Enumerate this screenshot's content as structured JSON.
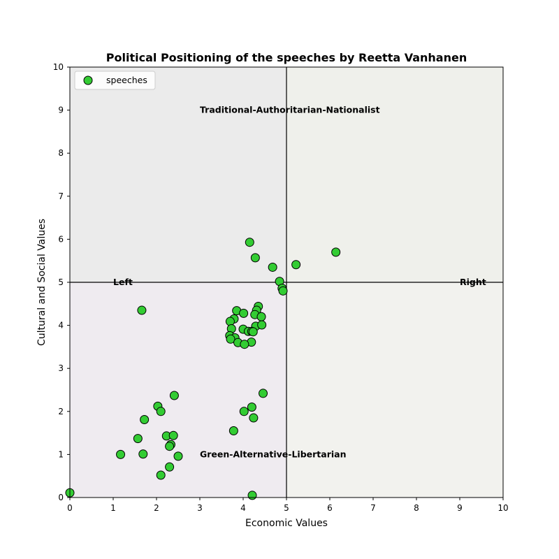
{
  "colors": {
    "point_fill": "#33cc33",
    "point_edge": "#000000",
    "quadrant_top_left": "#ebebeb",
    "quadrant_top_right": "#eff0eb",
    "quadrant_bottom_left": "#efebf0",
    "quadrant_bottom_right": "#f2f2ee"
  },
  "chart_data": {
    "type": "scatter",
    "title": "Political Positioning of the speeches by Reetta Vanhanen",
    "xlabel": "Economic Values",
    "ylabel": "Cultural and Social Values",
    "xlim": [
      0,
      10
    ],
    "ylim": [
      0,
      10
    ],
    "xticks": [
      "0",
      "1",
      "2",
      "3",
      "4",
      "5",
      "6",
      "7",
      "8",
      "9",
      "10"
    ],
    "yticks": [
      "0",
      "1",
      "2",
      "3",
      "4",
      "5",
      "6",
      "7",
      "8",
      "9",
      "10"
    ],
    "grid": false,
    "legend": {
      "position": "top-left",
      "entries": [
        "speeches"
      ]
    },
    "reference_lines": {
      "x": 5,
      "y": 5
    },
    "annotations": [
      {
        "text": "Traditional-Authoritarian-Nationalist",
        "x": 3.0,
        "y": 9.0
      },
      {
        "text": "Green-Alternative-Libertarian",
        "x": 3.0,
        "y": 1.0
      },
      {
        "text": "Left",
        "x": 1.0,
        "y": 5.0
      },
      {
        "text": "Right",
        "x": 9.0,
        "y": 5.0
      }
    ],
    "series": [
      {
        "name": "speeches",
        "points": [
          [
            4.15,
            5.93
          ],
          [
            4.28,
            5.57
          ],
          [
            4.68,
            5.35
          ],
          [
            5.22,
            5.41
          ],
          [
            6.14,
            5.7
          ],
          [
            4.84,
            5.02
          ],
          [
            4.9,
            4.86
          ],
          [
            4.92,
            4.8
          ],
          [
            1.66,
            4.35
          ],
          [
            3.85,
            4.34
          ],
          [
            4.35,
            4.44
          ],
          [
            4.31,
            4.35
          ],
          [
            4.01,
            4.28
          ],
          [
            4.27,
            4.25
          ],
          [
            4.42,
            4.2
          ],
          [
            3.79,
            4.15
          ],
          [
            3.7,
            4.09
          ],
          [
            4.29,
            3.98
          ],
          [
            4.43,
            4.01
          ],
          [
            3.73,
            3.92
          ],
          [
            4.0,
            3.91
          ],
          [
            4.12,
            3.86
          ],
          [
            4.2,
            3.86
          ],
          [
            4.23,
            3.85
          ],
          [
            3.69,
            3.76
          ],
          [
            3.81,
            3.71
          ],
          [
            3.71,
            3.68
          ],
          [
            3.88,
            3.6
          ],
          [
            4.19,
            3.61
          ],
          [
            4.03,
            3.56
          ],
          [
            4.46,
            2.42
          ],
          [
            2.41,
            2.37
          ],
          [
            2.03,
            2.12
          ],
          [
            4.2,
            2.1
          ],
          [
            2.1,
            2.0
          ],
          [
            4.02,
            2.0
          ],
          [
            4.24,
            1.85
          ],
          [
            1.72,
            1.81
          ],
          [
            3.78,
            1.55
          ],
          [
            2.23,
            1.43
          ],
          [
            2.39,
            1.44
          ],
          [
            1.57,
            1.37
          ],
          [
            2.33,
            1.23
          ],
          [
            2.3,
            1.19
          ],
          [
            1.17,
            1.0
          ],
          [
            1.69,
            1.01
          ],
          [
            2.5,
            0.96
          ],
          [
            2.3,
            0.71
          ],
          [
            2.1,
            0.52
          ],
          [
            0.0,
            0.11
          ],
          [
            4.21,
            0.05
          ]
        ]
      }
    ]
  }
}
